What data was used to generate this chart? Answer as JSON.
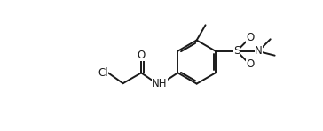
{
  "bg_color": "#ffffff",
  "line_color": "#1a1a1a",
  "lw": 1.4,
  "fs": 8.5,
  "figsize": [
    3.64,
    1.48
  ],
  "dpi": 100,
  "xlim": [
    0,
    9.1
  ],
  "ylim": [
    0,
    3.7
  ]
}
